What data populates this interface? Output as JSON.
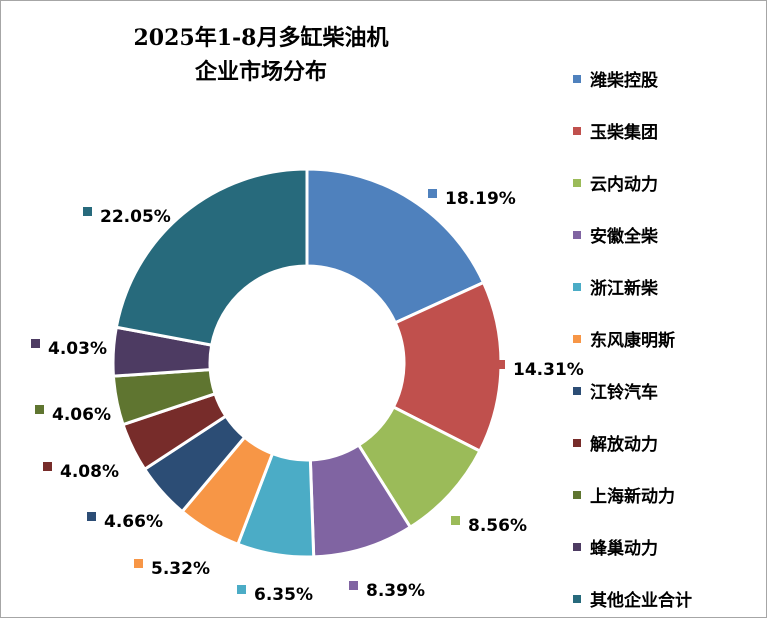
{
  "chart_data": {
    "type": "pie",
    "title": "2025年1-8月多缸柴油机企业市场分布",
    "title_lines": [
      "2025年1-8月多缸柴油机",
      "企业市场分布"
    ],
    "donut": true,
    "legend_position": "right",
    "labels": [
      "潍柴控股",
      "玉柴集团",
      "云内动力",
      "安徽全柴",
      "浙江新柴",
      "东风康明斯",
      "江铃汽车",
      "解放动力",
      "上海新动力",
      "蜂巢动力",
      "其他企业合计"
    ],
    "values": [
      18.19,
      14.31,
      8.56,
      8.39,
      6.35,
      5.32,
      4.66,
      4.08,
      4.06,
      4.03,
      22.05
    ],
    "data_labels": [
      "18.19%",
      "14.31%",
      "8.56%",
      "8.39%",
      "6.35%",
      "5.32%",
      "4.66%",
      "4.08%",
      "4.06%",
      "4.03%",
      "22.05%"
    ],
    "colors": [
      "#4f81bd",
      "#c0504d",
      "#9bbb59",
      "#8064a2",
      "#4bacc6",
      "#f79646",
      "#2c4d75",
      "#772c2a",
      "#5f7530",
      "#4d3b62",
      "#276a7c"
    ]
  }
}
